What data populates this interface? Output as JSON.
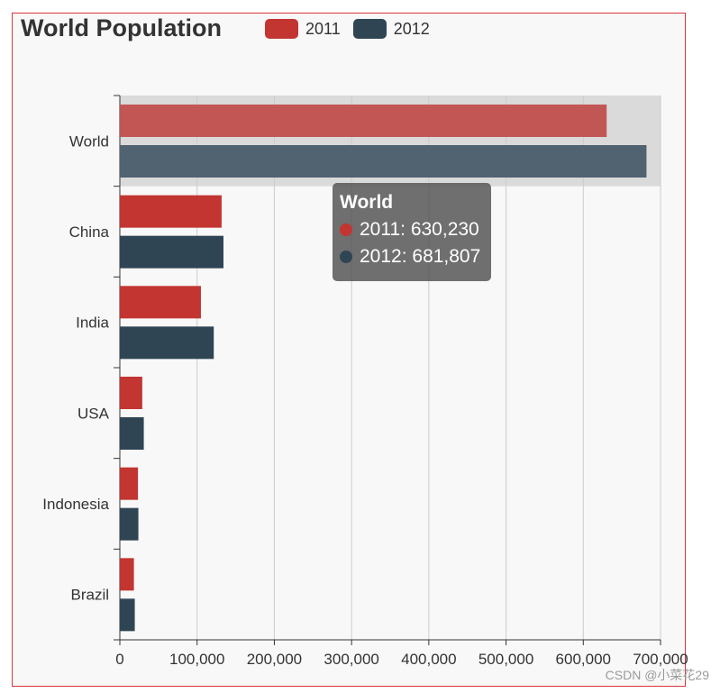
{
  "chart_data": {
    "type": "bar",
    "orientation": "horizontal",
    "title": "World Population",
    "categories": [
      "World",
      "China",
      "India",
      "USA",
      "Indonesia",
      "Brazil"
    ],
    "series": [
      {
        "name": "2011",
        "color": "#c23531",
        "values": [
          630230,
          131744,
          104970,
          29034,
          23489,
          18203
        ]
      },
      {
        "name": "2012",
        "color": "#2f4554",
        "values": [
          681807,
          134141,
          121594,
          31000,
          24000,
          19325
        ]
      }
    ],
    "xlim": [
      0,
      700000
    ],
    "x_ticks": [
      "0",
      "100,000",
      "200,000",
      "300,000",
      "400,000",
      "500,000",
      "600,000",
      "700,000"
    ],
    "grid": true,
    "legend": "top",
    "highlighted_category": "World"
  },
  "tooltip": {
    "title": "World",
    "rows": [
      {
        "color": "#c23531",
        "text": "2011: 630,230"
      },
      {
        "color": "#2f4554",
        "text": "2012: 681,807"
      }
    ]
  },
  "watermark": "CSDN @小菜花29"
}
